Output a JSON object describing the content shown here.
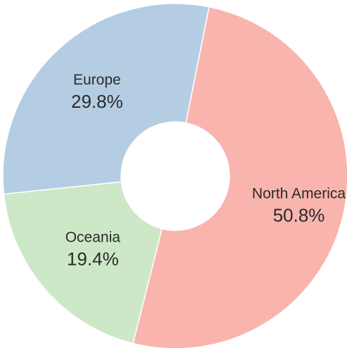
{
  "chart_data": {
    "type": "pie",
    "style": "donut",
    "title": "",
    "slices": [
      {
        "label": "North America",
        "value": 50.8,
        "display": "50.8%",
        "color": "#f9b4ae"
      },
      {
        "label": "Oceania",
        "value": 19.4,
        "display": "19.4%",
        "color": "#cde8c6"
      },
      {
        "label": "Europe",
        "value": 29.8,
        "display": "29.8%",
        "color": "#b4cde3"
      }
    ]
  }
}
